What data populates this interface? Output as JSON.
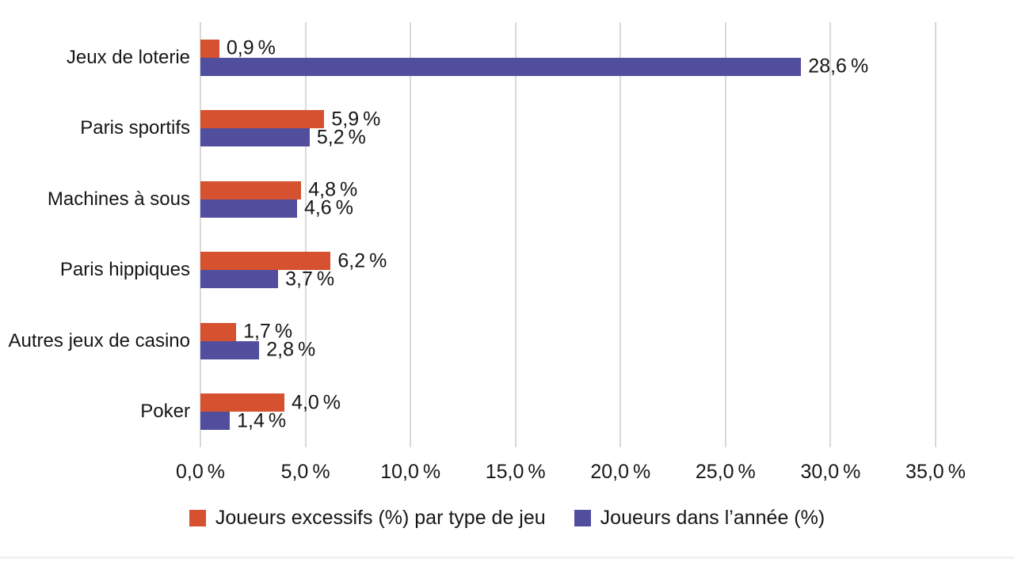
{
  "page": {
    "background": "#ffffff",
    "text_color": "#161616"
  },
  "chart_data": {
    "type": "bar",
    "orientation": "horizontal",
    "title": "",
    "categories": [
      "Jeux de loterie",
      "Paris sportifs",
      "Machines à sous",
      "Paris hippiques",
      "Autres jeux de casino",
      "Poker"
    ],
    "series": [
      {
        "name": "Joueurs excessifs (%) par type de jeu",
        "color": "#d5512f",
        "values": [
          0.9,
          5.9,
          4.8,
          6.2,
          1.7,
          4.0
        ],
        "value_labels": [
          "0,9 %",
          "5,9 %",
          "4,8 %",
          "6,2 %",
          "1,7 %",
          "4,0 %"
        ]
      },
      {
        "name": "Joueurs dans l’année (%)",
        "color": "#514e9e",
        "values": [
          28.6,
          5.2,
          4.6,
          3.7,
          2.8,
          1.4
        ],
        "value_labels": [
          "28,6 %",
          "5,2 %",
          "4,6 %",
          "3,7 %",
          "2,8 %",
          "1,4 %"
        ]
      }
    ],
    "x_axis": {
      "min": 0,
      "max": 35,
      "tick_step": 5,
      "tick_labels": [
        "0,0 %",
        "5,0 %",
        "10,0 %",
        "15,0 %",
        "20,0 %",
        "25,0 %",
        "30,0 %",
        "35,0 %"
      ]
    },
    "grid": {
      "show": true,
      "color": "#d9d9d9"
    },
    "legend": {
      "position": "bottom"
    }
  }
}
